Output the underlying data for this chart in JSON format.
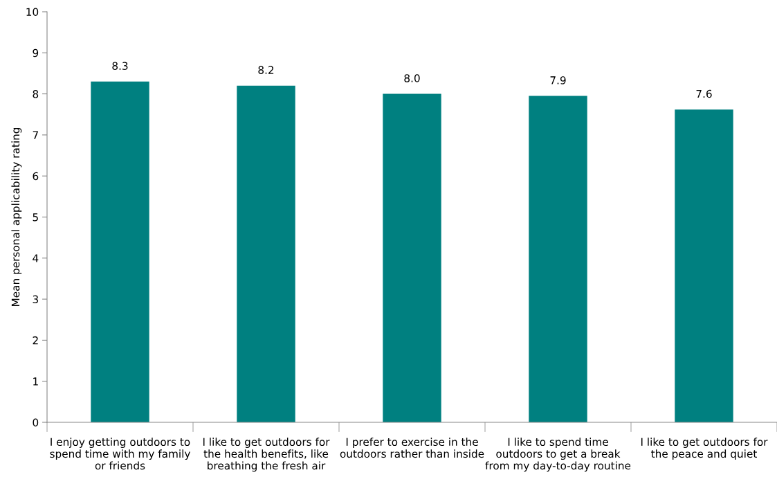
{
  "chart_data": {
    "type": "bar",
    "ylabel": "Mean personal applicability rating",
    "categories": [
      "I enjoy getting outdoors to\nspend time with my family\nor friends",
      "I like to get outdoors for\nthe health benefits, like\nbreathing the fresh air",
      "I prefer to exercise in the\noutdoors rather than inside",
      "I like to spend time\noutdoors to get a break\nfrom my day-to-day routine",
      "I like to get outdoors for\nthe peace and quiet"
    ],
    "values": [
      8.3,
      8.2,
      8.0,
      7.95,
      7.62
    ],
    "value_labels": [
      "8.3",
      "8.2",
      "8.0",
      "7.9",
      "7.6"
    ],
    "color": "#008080",
    "ylim": [
      0,
      10
    ],
    "yticks": [
      0,
      1,
      2,
      3,
      4,
      5,
      6,
      7,
      8,
      9,
      10
    ],
    "grid": false,
    "legend": false
  }
}
